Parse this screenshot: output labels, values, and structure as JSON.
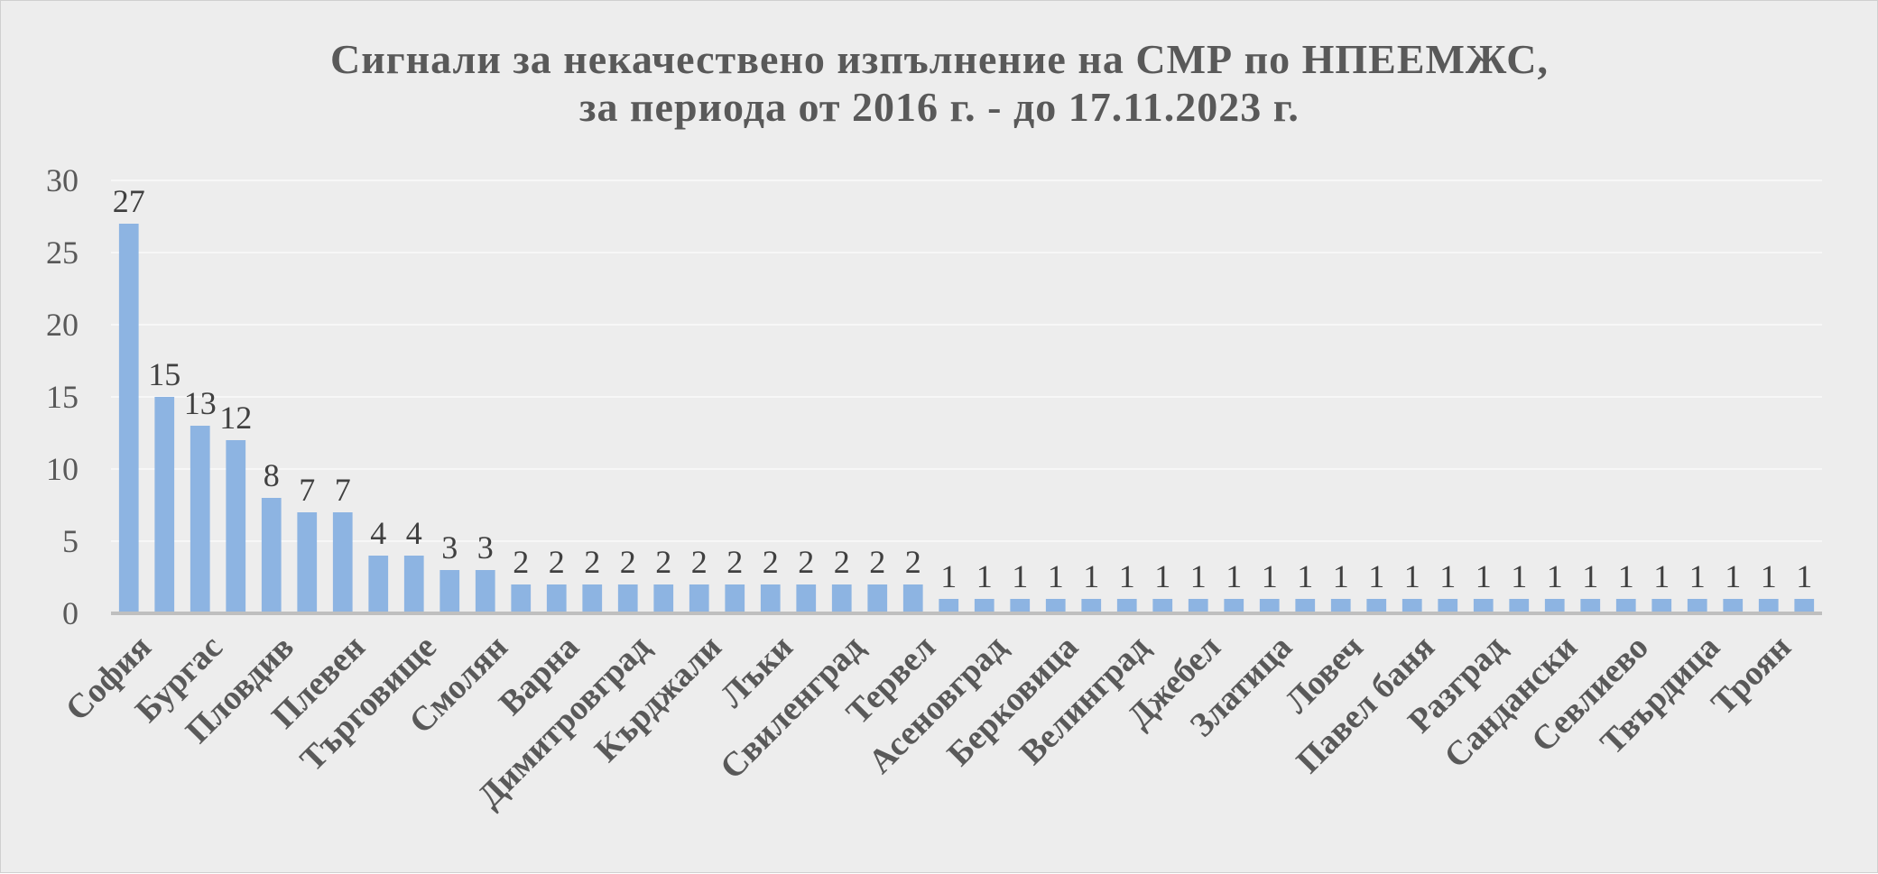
{
  "chart_data": {
    "type": "bar",
    "title": "Сигнали за некачествено изпълнение на СМР по НПЕЕМЖС,",
    "subtitle": "за периода от 2016 г. - до 17.11.2023 г.",
    "categories": [
      "София",
      "",
      "Бургас",
      "",
      "Пловдив",
      "",
      "Плевен",
      "",
      "Търговище",
      "",
      "Смолян",
      "",
      "Варна",
      "",
      "Димитровград",
      "",
      "Кърджали",
      "",
      "Лъки",
      "",
      "Свиленград",
      "",
      "Тервел",
      "",
      "Асеновград",
      "",
      "Берковица",
      "",
      "Велинград",
      "",
      "Джебел",
      "",
      "Златица",
      "",
      "Ловеч",
      "",
      "Павел баня",
      "",
      "Разград",
      "",
      "Сандански",
      "",
      "Севлиево",
      "",
      "Твърдица",
      "",
      "Троян",
      ""
    ],
    "values": [
      27,
      15,
      13,
      12,
      8,
      7,
      7,
      4,
      4,
      3,
      3,
      2,
      2,
      2,
      2,
      2,
      2,
      2,
      2,
      2,
      2,
      2,
      2,
      1,
      1,
      1,
      1,
      1,
      1,
      1,
      1,
      1,
      1,
      1,
      1,
      1,
      1,
      1,
      1,
      1,
      1,
      1,
      1,
      1,
      1,
      1,
      1,
      1
    ],
    "ylim": [
      0,
      30
    ],
    "yticks": [
      0,
      5,
      10,
      15,
      20,
      25,
      30
    ],
    "ytick_labels": [
      "0",
      "5",
      "10",
      "15",
      "20",
      "25",
      "30"
    ],
    "xlabel": "",
    "ylabel": "",
    "grid": true,
    "legend": "none",
    "data_labels": true,
    "colors": {
      "bar": "#8db4e2",
      "background": "#ededed",
      "text": "#595959",
      "label": "#404040",
      "grid": "#f7f7f7",
      "axis": "#bfbfbf"
    }
  }
}
